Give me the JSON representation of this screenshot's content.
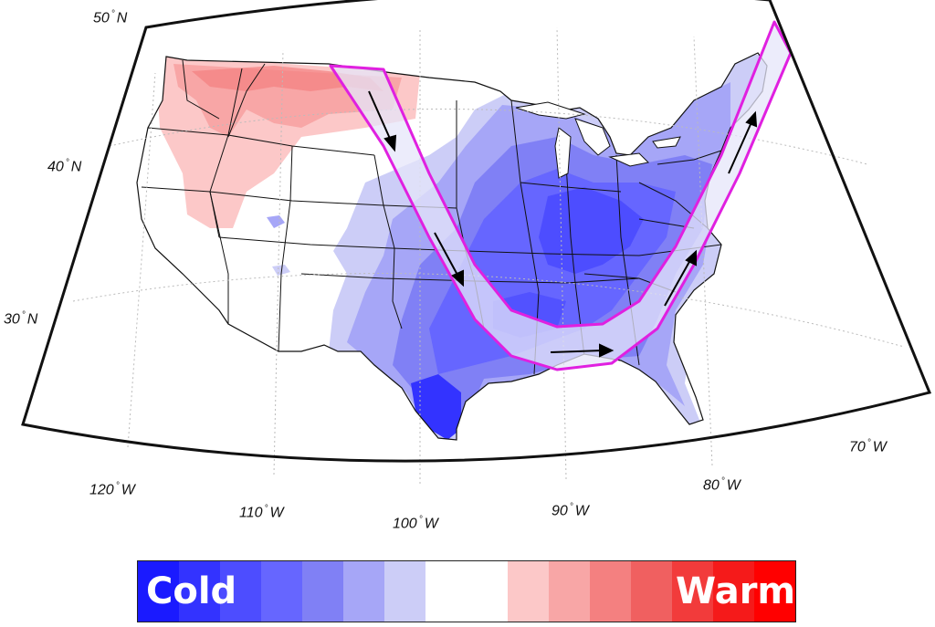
{
  "latitude_labels": [
    {
      "id": "lat-50",
      "value": "50",
      "hemi": "N"
    },
    {
      "id": "lat-40",
      "value": "40",
      "hemi": "N"
    },
    {
      "id": "lat-30",
      "value": "30",
      "hemi": "N"
    }
  ],
  "longitude_labels": [
    {
      "id": "lon-120",
      "value": "120",
      "hemi": "W"
    },
    {
      "id": "lon-110",
      "value": "110",
      "hemi": "W"
    },
    {
      "id": "lon-100",
      "value": "100",
      "hemi": "W"
    },
    {
      "id": "lon-90",
      "value": "90",
      "hemi": "W"
    },
    {
      "id": "lon-80",
      "value": "80",
      "hemi": "W"
    },
    {
      "id": "lon-70",
      "value": "70",
      "hemi": "W"
    }
  ],
  "colorbar": {
    "cold_label": "Cold",
    "warm_label": "Warm",
    "colors": [
      "#1a1aff",
      "#3333ff",
      "#4d4dff",
      "#6666ff",
      "#8080f5",
      "#a6a6f7",
      "#cccdf7",
      "#ffffff",
      "#ffffff",
      "#fcc8c8",
      "#f8a6a6",
      "#f48080",
      "#f06060",
      "#f23b3b",
      "#f51a1a",
      "#ff0000"
    ]
  },
  "colors": {
    "frame": "#111111",
    "graticule": "#bbbbbb",
    "state_lines": "#111111",
    "jet_stream_outline": "#e020e0",
    "jet_stream_fill": "#e6e6fa",
    "arrows": "#000000"
  },
  "anomaly_regions": {
    "warm_northwest": "warm",
    "cold_southeast": "cold"
  }
}
